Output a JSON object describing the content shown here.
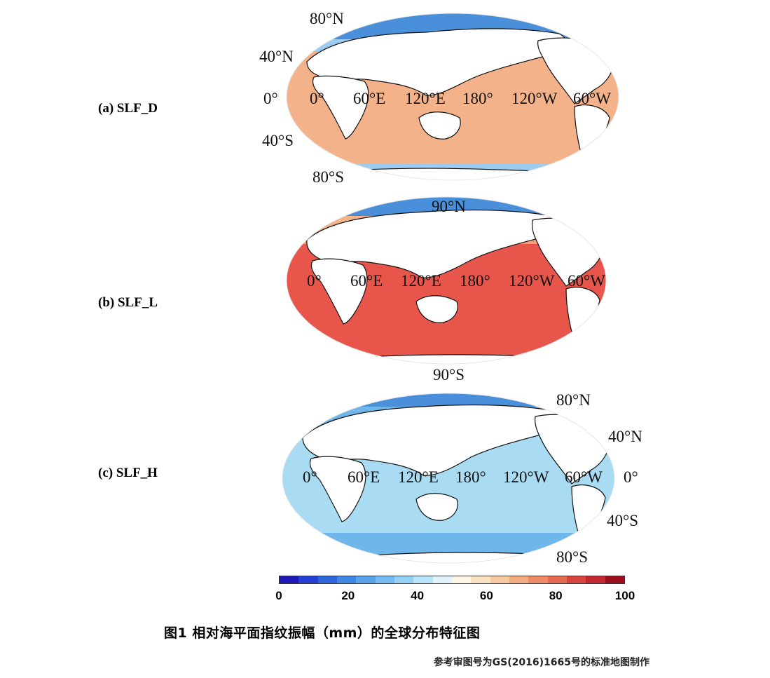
{
  "panels": [
    {
      "label": "(a) SLF_D",
      "ocean_color": "#f3b28a",
      "polar_colors": [
        "#4a8fd9",
        "#9ccdf0"
      ],
      "coast_band_color": "#f8d6b8",
      "lat_labels_left": [
        "80°N",
        "40°N",
        "0°",
        "40°S",
        "80°S"
      ],
      "lon_labels": [
        "0°",
        "60°E",
        "120°E",
        "180°",
        "120°W",
        "60°W"
      ]
    },
    {
      "label": "(b) SLF_L",
      "ocean_color": "#e8554a",
      "polar_colors": [
        "#4a8fd9",
        "#f3b28a"
      ],
      "coast_band_color": "#f3a07a",
      "top_label": "90°N",
      "bottom_label": "90°S",
      "lon_labels": [
        "0°",
        "60°E",
        "120°E",
        "180°",
        "120°W",
        "60°W"
      ]
    },
    {
      "label": "(c) SLF_H",
      "ocean_color": "#a9dcf3",
      "polar_colors": [
        "#4a8fd9",
        "#6fb6ea"
      ],
      "coast_band_color": "#7fc0ec",
      "lat_labels_right": [
        "80°N",
        "40°N",
        "0°",
        "40°S",
        "80°S"
      ],
      "lon_labels": [
        "0°",
        "60°E",
        "120°E",
        "180°",
        "120°W",
        "60°W"
      ]
    }
  ],
  "colorbar": {
    "colors": [
      "#1d1ab8",
      "#2540d0",
      "#2f66dc",
      "#3f87e3",
      "#5aa2ea",
      "#75baf0",
      "#96d0f5",
      "#b9e3f8",
      "#e3f3fb",
      "#fdf6e6",
      "#f9e2c2",
      "#f6c9a0",
      "#f2ac82",
      "#ec8c68",
      "#e56a52",
      "#d8453f",
      "#c22832",
      "#9b0f1f"
    ],
    "ticks": [
      "0",
      "20",
      "40",
      "60",
      "80",
      "100"
    ]
  },
  "caption": "图1 相对海平面指纹振幅（mm）的全球分布特征图",
  "note": "参考审图号为GS(2016)1665号的标准地图制作"
}
